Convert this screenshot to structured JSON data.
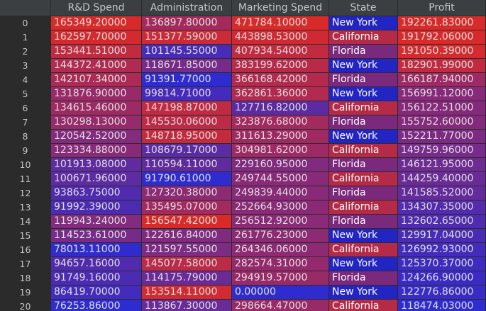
{
  "columns": [
    "",
    "R&D Spend",
    "Administration",
    "Marketing Spend",
    "State",
    "Profit"
  ],
  "palette": {
    "low": "#2e2bd0",
    "high": "#d92a2a"
  },
  "state_colors": {
    "New York": "#2324c4",
    "California": "#b52a46",
    "Florida": "#7a297c"
  },
  "rows": [
    {
      "idx": "0",
      "rd": "165349.20000",
      "admin": "136897.80000",
      "mkt": "471784.10000",
      "state": "New York",
      "profit": "192261.83000"
    },
    {
      "idx": "1",
      "rd": "162597.70000",
      "admin": "151377.59000",
      "mkt": "443898.53000",
      "state": "California",
      "profit": "191792.06000"
    },
    {
      "idx": "2",
      "rd": "153441.51000",
      "admin": "101145.55000",
      "mkt": "407934.54000",
      "state": "Florida",
      "profit": "191050.39000"
    },
    {
      "idx": "3",
      "rd": "144372.41000",
      "admin": "118671.85000",
      "mkt": "383199.62000",
      "state": "New York",
      "profit": "182901.99000"
    },
    {
      "idx": "4",
      "rd": "142107.34000",
      "admin": "91391.77000",
      "mkt": "366168.42000",
      "state": "Florida",
      "profit": "166187.94000"
    },
    {
      "idx": "5",
      "rd": "131876.90000",
      "admin": "99814.71000",
      "mkt": "362861.36000",
      "state": "New York",
      "profit": "156991.12000"
    },
    {
      "idx": "6",
      "rd": "134615.46000",
      "admin": "147198.87000",
      "mkt": "127716.82000",
      "state": "California",
      "profit": "156122.51000"
    },
    {
      "idx": "7",
      "rd": "130298.13000",
      "admin": "145530.06000",
      "mkt": "323876.68000",
      "state": "Florida",
      "profit": "155752.60000"
    },
    {
      "idx": "8",
      "rd": "120542.52000",
      "admin": "148718.95000",
      "mkt": "311613.29000",
      "state": "New York",
      "profit": "152211.77000"
    },
    {
      "idx": "9",
      "rd": "123334.88000",
      "admin": "108679.17000",
      "mkt": "304981.62000",
      "state": "California",
      "profit": "149759.96000"
    },
    {
      "idx": "10",
      "rd": "101913.08000",
      "admin": "110594.11000",
      "mkt": "229160.95000",
      "state": "Florida",
      "profit": "146121.95000"
    },
    {
      "idx": "11",
      "rd": "100671.96000",
      "admin": "91790.61000",
      "mkt": "249744.55000",
      "state": "California",
      "profit": "144259.40000"
    },
    {
      "idx": "12",
      "rd": "93863.75000",
      "admin": "127320.38000",
      "mkt": "249839.44000",
      "state": "Florida",
      "profit": "141585.52000"
    },
    {
      "idx": "13",
      "rd": "91992.39000",
      "admin": "135495.07000",
      "mkt": "252664.93000",
      "state": "California",
      "profit": "134307.35000"
    },
    {
      "idx": "14",
      "rd": "119943.24000",
      "admin": "156547.42000",
      "mkt": "256512.92000",
      "state": "Florida",
      "profit": "132602.65000"
    },
    {
      "idx": "15",
      "rd": "114523.61000",
      "admin": "122616.84000",
      "mkt": "261776.23000",
      "state": "New York",
      "profit": "129917.04000"
    },
    {
      "idx": "16",
      "rd": "78013.11000",
      "admin": "121597.55000",
      "mkt": "264346.06000",
      "state": "California",
      "profit": "126992.93000"
    },
    {
      "idx": "17",
      "rd": "94657.16000",
      "admin": "145077.58000",
      "mkt": "282574.31000",
      "state": "New York",
      "profit": "125370.37000"
    },
    {
      "idx": "18",
      "rd": "91749.16000",
      "admin": "114175.79000",
      "mkt": "294919.57000",
      "state": "Florida",
      "profit": "124266.90000"
    },
    {
      "idx": "19",
      "rd": "86419.70000",
      "admin": "153514.11000",
      "mkt": "0.00000",
      "state": "New York",
      "profit": "122776.86000"
    },
    {
      "idx": "20",
      "rd": "76253.86000",
      "admin": "113867.30000",
      "mkt": "298664.47000",
      "state": "California",
      "profit": "118474.03000"
    }
  ]
}
